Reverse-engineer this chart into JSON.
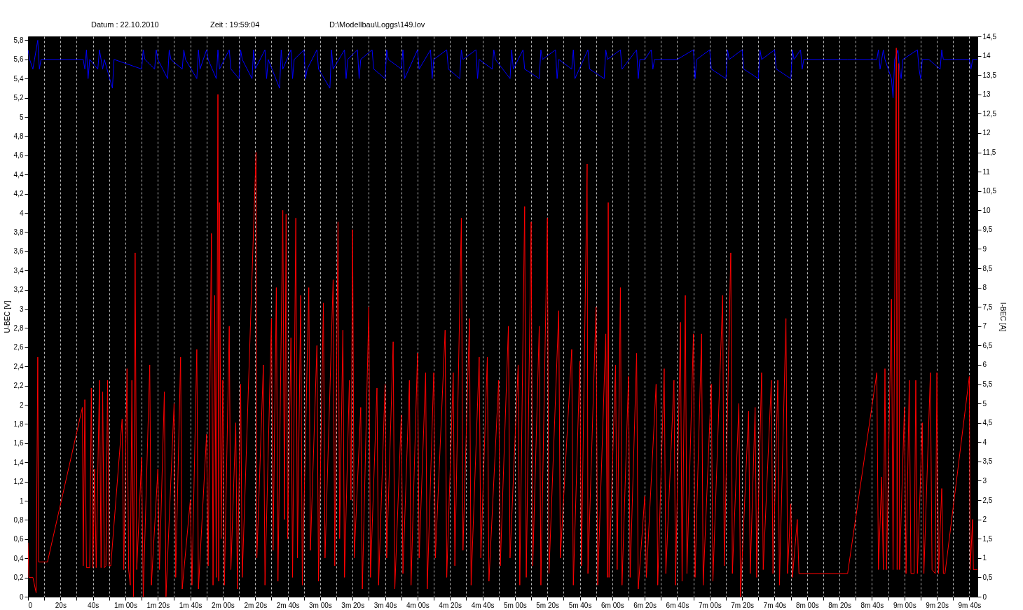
{
  "chart_data": {
    "type": "line",
    "annotations": [
      "Datum : 22.10.2010",
      "Zeit : 19:59:04",
      "D:\\Modellbau\\Loggs\\149.lov"
    ],
    "ylabel": "U-BEC [V]",
    "y2label": "I-BEC [A]",
    "grid": "x",
    "xlim": [
      0,
      585
    ],
    "ylim": [
      0,
      5.84
    ],
    "y2lim": [
      0,
      14.5
    ],
    "xticks": [
      {
        "value": 0,
        "label": "0"
      },
      {
        "value": 10,
        "label": null
      },
      {
        "value": 20,
        "label": "20s"
      },
      {
        "value": 30,
        "label": null
      },
      {
        "value": 40,
        "label": "40s"
      },
      {
        "value": 50,
        "label": null
      },
      {
        "value": 60,
        "label": "1m 00s"
      },
      {
        "value": 70,
        "label": null
      },
      {
        "value": 80,
        "label": "1m 20s"
      },
      {
        "value": 90,
        "label": null
      },
      {
        "value": 100,
        "label": "1m 40s"
      },
      {
        "value": 110,
        "label": null
      },
      {
        "value": 120,
        "label": "2m 00s"
      },
      {
        "value": 130,
        "label": null
      },
      {
        "value": 140,
        "label": "2m 20s"
      },
      {
        "value": 150,
        "label": null
      },
      {
        "value": 160,
        "label": "2m 40s"
      },
      {
        "value": 170,
        "label": null
      },
      {
        "value": 180,
        "label": "3m 00s"
      },
      {
        "value": 190,
        "label": null
      },
      {
        "value": 200,
        "label": "3m 20s"
      },
      {
        "value": 210,
        "label": null
      },
      {
        "value": 220,
        "label": "3m 40s"
      },
      {
        "value": 230,
        "label": null
      },
      {
        "value": 240,
        "label": "4m 00s"
      },
      {
        "value": 250,
        "label": null
      },
      {
        "value": 260,
        "label": "4m 20s"
      },
      {
        "value": 270,
        "label": null
      },
      {
        "value": 280,
        "label": "4m 40s"
      },
      {
        "value": 290,
        "label": null
      },
      {
        "value": 300,
        "label": "5m 00s"
      },
      {
        "value": 310,
        "label": null
      },
      {
        "value": 320,
        "label": "5m 20s"
      },
      {
        "value": 330,
        "label": null
      },
      {
        "value": 340,
        "label": "5m 40s"
      },
      {
        "value": 350,
        "label": null
      },
      {
        "value": 360,
        "label": "6m 00s"
      },
      {
        "value": 370,
        "label": null
      },
      {
        "value": 380,
        "label": "6m 20s"
      },
      {
        "value": 390,
        "label": null
      },
      {
        "value": 400,
        "label": "6m 40s"
      },
      {
        "value": 410,
        "label": null
      },
      {
        "value": 420,
        "label": "7m 00s"
      },
      {
        "value": 430,
        "label": null
      },
      {
        "value": 440,
        "label": "7m 20s"
      },
      {
        "value": 450,
        "label": null
      },
      {
        "value": 460,
        "label": "7m 40s"
      },
      {
        "value": 470,
        "label": null
      },
      {
        "value": 480,
        "label": "8m 00s"
      },
      {
        "value": 490,
        "label": null
      },
      {
        "value": 500,
        "label": "8m 20s"
      },
      {
        "value": 510,
        "label": null
      },
      {
        "value": 520,
        "label": "8m 40s"
      },
      {
        "value": 530,
        "label": null
      },
      {
        "value": 540,
        "label": "9m 00s"
      },
      {
        "value": 550,
        "label": null
      },
      {
        "value": 560,
        "label": "9m 20s"
      },
      {
        "value": 570,
        "label": null
      },
      {
        "value": 580,
        "label": "9m 40s"
      }
    ],
    "yticks": [
      {
        "value": 0,
        "label": "0"
      },
      {
        "value": 0.2,
        "label": "0,2"
      },
      {
        "value": 0.4,
        "label": "0,4"
      },
      {
        "value": 0.6,
        "label": "0,6"
      },
      {
        "value": 0.8,
        "label": "0,8"
      },
      {
        "value": 1,
        "label": "1"
      },
      {
        "value": 1.2,
        "label": "1,2"
      },
      {
        "value": 1.4,
        "label": "1,4"
      },
      {
        "value": 1.6,
        "label": "1,6"
      },
      {
        "value": 1.8,
        "label": "1,8"
      },
      {
        "value": 2,
        "label": "2"
      },
      {
        "value": 2.2,
        "label": "2,2"
      },
      {
        "value": 2.4,
        "label": "2,4"
      },
      {
        "value": 2.6,
        "label": "2,6"
      },
      {
        "value": 2.8,
        "label": "2,8"
      },
      {
        "value": 3,
        "label": "3"
      },
      {
        "value": 3.2,
        "label": "3,2"
      },
      {
        "value": 3.4,
        "label": "3,4"
      },
      {
        "value": 3.6,
        "label": "3,6"
      },
      {
        "value": 3.8,
        "label": "3,8"
      },
      {
        "value": 4,
        "label": "4"
      },
      {
        "value": 4.2,
        "label": "4,2"
      },
      {
        "value": 4.4,
        "label": "4,4"
      },
      {
        "value": 4.6,
        "label": "4,6"
      },
      {
        "value": 4.8,
        "label": "4,8"
      },
      {
        "value": 5,
        "label": "5"
      },
      {
        "value": 5.2,
        "label": "5,2"
      },
      {
        "value": 5.4,
        "label": "5,4"
      },
      {
        "value": 5.6,
        "label": "5,6"
      },
      {
        "value": 5.8,
        "label": "5,8"
      }
    ],
    "y2ticks": [
      {
        "value": 0,
        "label": "0"
      },
      {
        "value": 0.5,
        "label": "0,5"
      },
      {
        "value": 1,
        "label": "1"
      },
      {
        "value": 1.5,
        "label": "1,5"
      },
      {
        "value": 2,
        "label": "2"
      },
      {
        "value": 2.5,
        "label": "2,5"
      },
      {
        "value": 3,
        "label": "3"
      },
      {
        "value": 3.5,
        "label": "3,5"
      },
      {
        "value": 4,
        "label": "4"
      },
      {
        "value": 4.5,
        "label": "4,5"
      },
      {
        "value": 5,
        "label": "5"
      },
      {
        "value": 5.5,
        "label": "5,5"
      },
      {
        "value": 6,
        "label": "6"
      },
      {
        "value": 6.5,
        "label": "6,5"
      },
      {
        "value": 7,
        "label": "7"
      },
      {
        "value": 7.5,
        "label": "7,5"
      },
      {
        "value": 8,
        "label": "8"
      },
      {
        "value": 8.5,
        "label": "8,5"
      },
      {
        "value": 9,
        "label": "9"
      },
      {
        "value": 9.5,
        "label": "9,5"
      },
      {
        "value": 10,
        "label": "10"
      },
      {
        "value": 10.5,
        "label": "10,5"
      },
      {
        "value": 11,
        "label": "11"
      },
      {
        "value": 11.5,
        "label": "11,5"
      },
      {
        "value": 12,
        "label": "12"
      },
      {
        "value": 12.5,
        "label": "12,5"
      },
      {
        "value": 13,
        "label": "13"
      },
      {
        "value": 13.5,
        "label": "13,5"
      },
      {
        "value": 14,
        "label": "14"
      },
      {
        "value": 14.5,
        "label": "14,5"
      }
    ],
    "series": [
      {
        "color": "#0000ff",
        "x": [
          0,
          1,
          3,
          4,
          6,
          7,
          8,
          34,
          35,
          36,
          37,
          38,
          43,
          44,
          46,
          47,
          52,
          53,
          70,
          71,
          72,
          78,
          79,
          80,
          86,
          87,
          88,
          95,
          96,
          97,
          104,
          105,
          106,
          110,
          111,
          116,
          117,
          118,
          124,
          125,
          130,
          131,
          132,
          138,
          139,
          140,
          146,
          147,
          148,
          155,
          156,
          157,
          162,
          163,
          164,
          170,
          171,
          172,
          178,
          179,
          186,
          187,
          188,
          195,
          196,
          197,
          203,
          204,
          205,
          212,
          213,
          220,
          221,
          222,
          230,
          231,
          232,
          240,
          241,
          248,
          249,
          250,
          258,
          259,
          266,
          267,
          268,
          276,
          277,
          278,
          286,
          287,
          288,
          297,
          298,
          299,
          305,
          306,
          315,
          316,
          317,
          325,
          326,
          327,
          335,
          336,
          337,
          345,
          346,
          355,
          356,
          357,
          365,
          366,
          375,
          376,
          377,
          380,
          384,
          385,
          386,
          400,
          410,
          411,
          412,
          420,
          421,
          430,
          431,
          432,
          440,
          441,
          450,
          451,
          452,
          460,
          461,
          470,
          471,
          472,
          476,
          477,
          478,
          505,
          523,
          524,
          525,
          527,
          528,
          532,
          533,
          534,
          536,
          537,
          538,
          539,
          548,
          549,
          550,
          551,
          555,
          562,
          563,
          564,
          580,
          581,
          582,
          585
        ],
        "values": [
          5.7,
          5.6,
          5.5,
          5.6,
          5.8,
          5.5,
          5.6,
          5.6,
          5.5,
          5.7,
          5.4,
          5.6,
          5.5,
          5.7,
          5.5,
          5.6,
          5.3,
          5.6,
          5.5,
          5.7,
          5.6,
          5.5,
          5.7,
          5.6,
          5.4,
          5.7,
          5.6,
          5.5,
          5.7,
          5.6,
          5.4,
          5.7,
          5.5,
          5.7,
          5.6,
          5.4,
          5.7,
          5.5,
          5.7,
          5.5,
          5.4,
          5.7,
          5.6,
          5.4,
          5.7,
          5.5,
          5.7,
          5.4,
          5.6,
          5.3,
          5.7,
          5.5,
          5.7,
          5.4,
          5.6,
          5.7,
          5.4,
          5.5,
          5.7,
          5.5,
          5.3,
          5.7,
          5.5,
          5.7,
          5.4,
          5.6,
          5.7,
          5.4,
          5.6,
          5.7,
          5.5,
          5.4,
          5.7,
          5.6,
          5.5,
          5.7,
          5.4,
          5.7,
          5.5,
          5.7,
          5.4,
          5.6,
          5.7,
          5.5,
          5.4,
          5.7,
          5.6,
          5.7,
          5.4,
          5.6,
          5.5,
          5.7,
          5.6,
          5.4,
          5.7,
          5.5,
          5.7,
          5.5,
          5.4,
          5.7,
          5.6,
          5.7,
          5.4,
          5.6,
          5.5,
          5.7,
          5.4,
          5.7,
          5.5,
          5.4,
          5.7,
          5.6,
          5.7,
          5.5,
          5.7,
          5.4,
          5.6,
          5.6,
          5.7,
          5.5,
          5.6,
          5.6,
          5.7,
          5.4,
          5.6,
          5.7,
          5.5,
          5.4,
          5.7,
          5.6,
          5.7,
          5.5,
          5.4,
          5.7,
          5.6,
          5.7,
          5.5,
          5.4,
          5.7,
          5.6,
          5.7,
          5.5,
          5.6,
          5.6,
          5.6,
          5.7,
          5.5,
          5.7,
          5.6,
          5.4,
          5.2,
          5.6,
          5.7,
          5.5,
          5.4,
          5.6,
          5.7,
          5.5,
          5.4,
          5.6,
          5.6,
          5.5,
          5.7,
          5.6,
          5.6,
          5.5,
          5.6,
          5.6
        ]
      },
      {
        "color": "#ff0000",
        "axis": "y2",
        "x": [
          0,
          0.5,
          3,
          5,
          6,
          6.5,
          8,
          12,
          33.5,
          34,
          35,
          36,
          38,
          39,
          40,
          41,
          42,
          44,
          45,
          46,
          47,
          48,
          49,
          50,
          51,
          58,
          59,
          61,
          62,
          63,
          64,
          65,
          66,
          67,
          70,
          71,
          75,
          76,
          80,
          81,
          84,
          85,
          90,
          91,
          94,
          95,
          100,
          101,
          104,
          105,
          110,
          111,
          113,
          114,
          115,
          116,
          117,
          117.5,
          118,
          119,
          120,
          121,
          124,
          125,
          128,
          129,
          131,
          132,
          140.5,
          141,
          145,
          146,
          150,
          151,
          153,
          154,
          157,
          158,
          159,
          160,
          162,
          163,
          165,
          166,
          168,
          169,
          173,
          174,
          178,
          179,
          182,
          183,
          188,
          189,
          191,
          192,
          194,
          195,
          198,
          199,
          200,
          201,
          205,
          206,
          210,
          211,
          215,
          216,
          220,
          221,
          225,
          226,
          230,
          231,
          235,
          236,
          240,
          241,
          245,
          246,
          250,
          251,
          257,
          258,
          262,
          263,
          267,
          268,
          272,
          273,
          278,
          279,
          283,
          284,
          290,
          291,
          296,
          297,
          302,
          303,
          306,
          307,
          310,
          311,
          315,
          316,
          320,
          321,
          327,
          328,
          335,
          336,
          340,
          341,
          344.5,
          345,
          350,
          351,
          356,
          357,
          357.5,
          358,
          362,
          363,
          365,
          366,
          370,
          371,
          375,
          376,
          380,
          381,
          387,
          388,
          392,
          393,
          398,
          399,
          402,
          403,
          405,
          406,
          410,
          411,
          415,
          416,
          421,
          422,
          428,
          429,
          433,
          434,
          438,
          439,
          444,
          445,
          448,
          449,
          452,
          453,
          458,
          459,
          462,
          463,
          467,
          468,
          470,
          471,
          474,
          475,
          480,
          505,
          523,
          524,
          526,
          527,
          528,
          529,
          532,
          533,
          535,
          535.5,
          536.5,
          537,
          540,
          541,
          543,
          544,
          546,
          547,
          548,
          551,
          552,
          556,
          557,
          559,
          560,
          561,
          563,
          564,
          565,
          580,
          580.5,
          582,
          582.5,
          585
        ],
        "values": [
          1.4,
          0.5,
          0.5,
          0.1,
          6.2,
          0.9,
          0.9,
          0.9,
          4.9,
          0.8,
          5.1,
          0.75,
          0.75,
          5.4,
          0.75,
          3.3,
          0.75,
          5.6,
          0.75,
          5.3,
          0.75,
          0.8,
          5.6,
          0.8,
          0.8,
          4.6,
          0.7,
          5.9,
          0.7,
          0.3,
          5.6,
          0.0,
          8.9,
          0.7,
          3.6,
          0.0,
          6.0,
          0.3,
          3.3,
          0.7,
          5.3,
          0.0,
          5.0,
          0.5,
          6.2,
          0.2,
          2.5,
          0.3,
          6.4,
          0.2,
          4.2,
          0.8,
          9.4,
          0.3,
          7.8,
          0.5,
          13.0,
          0.4,
          10.2,
          1.5,
          5.6,
          0.3,
          7.0,
          0.7,
          4.5,
          0.2,
          5.5,
          0.5,
          11.5,
          1.0,
          6.0,
          0.3,
          7.2,
          1.2,
          8.0,
          0.4,
          10.0,
          2.0,
          9.9,
          1.5,
          6.7,
          0.5,
          9.8,
          1.0,
          7.8,
          0.3,
          8.0,
          1.2,
          6.5,
          0.4,
          7.6,
          1.0,
          8.2,
          0.8,
          9.7,
          1.5,
          6.9,
          0.5,
          5.6,
          2.5,
          9.5,
          1.0,
          4.9,
          0.2,
          7.5,
          0.5,
          5.4,
          0.3,
          5.5,
          1.0,
          6.6,
          0.2,
          4.7,
          0.6,
          5.6,
          0.3,
          6.3,
          1.0,
          5.8,
          0.2,
          5.8,
          1.0,
          6.9,
          0.5,
          5.8,
          0.8,
          9.8,
          1.2,
          7.2,
          0.3,
          6.2,
          1.0,
          6.2,
          0.4,
          5.6,
          0.8,
          7.0,
          1.0,
          6.0,
          0.3,
          10.1,
          0.5,
          9.7,
          0.8,
          7.0,
          0.3,
          9.8,
          0.6,
          7.4,
          1.0,
          6.4,
          0.3,
          6.1,
          0.8,
          11.2,
          0.6,
          7.5,
          0.3,
          6.8,
          0.5,
          10.2,
          0.5,
          6.0,
          0.7,
          8.0,
          0.3,
          5.7,
          0.5,
          6.3,
          0.2,
          2.6,
          0.5,
          5.5,
          0.3,
          5.9,
          0.6,
          5.6,
          0.3,
          7.1,
          0.4,
          7.8,
          0.6,
          6.8,
          0.5,
          6.8,
          0.3,
          5.5,
          0.4,
          7.8,
          0.8,
          8.9,
          0.6,
          5.0,
          0.0,
          4.8,
          0.6,
          4.9,
          0.5,
          5.8,
          0.7,
          5.6,
          0.6,
          5.6,
          0.3,
          7.2,
          0.6,
          2.4,
          0.5,
          2.0,
          0.6,
          0.6,
          0.6,
          5.8,
          0.7,
          3.1,
          0.7,
          5.9,
          0.7,
          7.7,
          0.7,
          14.2,
          0.7,
          13.8,
          0.7,
          4.9,
          0.6,
          5.6,
          0.6,
          0.6,
          5.6,
          0.6,
          4.5,
          0.6,
          5.8,
          0.7,
          0.6,
          5.8,
          0.6,
          2.8,
          0.6,
          0.6,
          5.7,
          0.7,
          2.0,
          0.7,
          0.7
        ]
      }
    ]
  }
}
